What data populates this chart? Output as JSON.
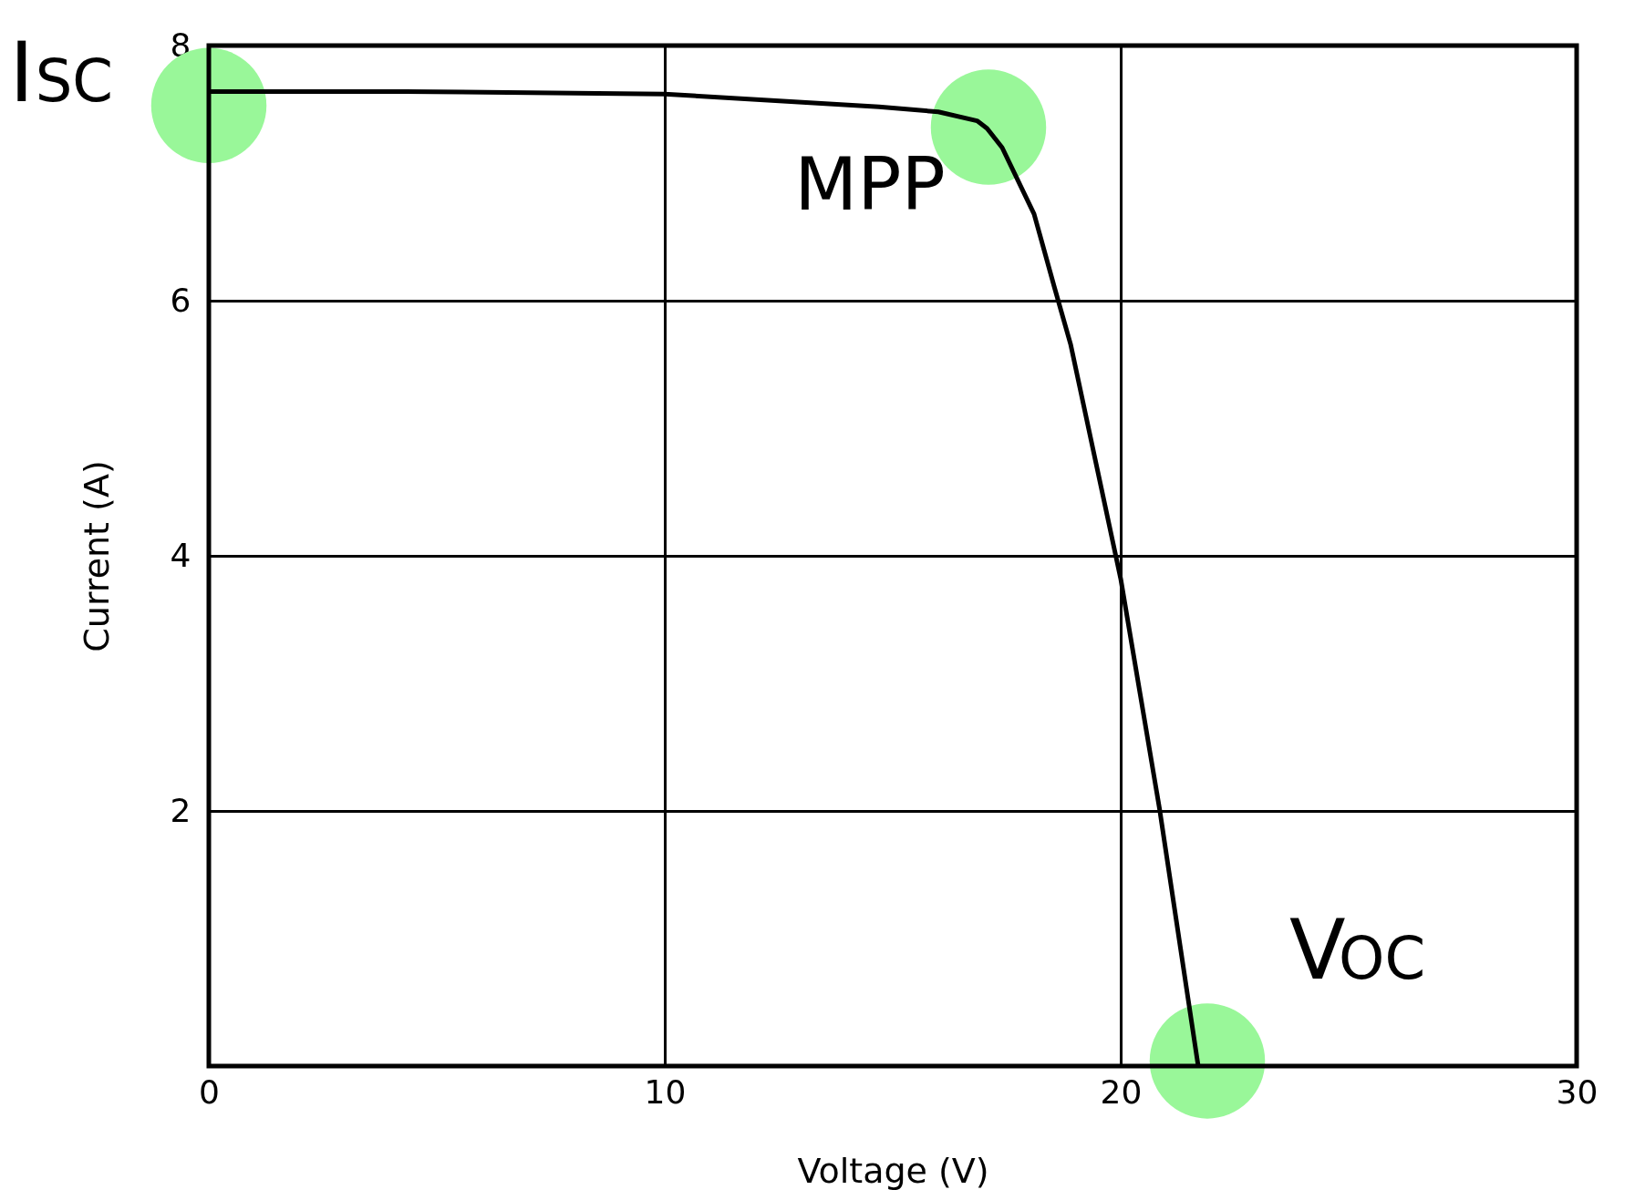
{
  "chart_data": {
    "type": "line",
    "xlabel": "Voltage (V)",
    "ylabel": "Current (A)",
    "xlim": [
      0,
      30
    ],
    "ylim": [
      0,
      8
    ],
    "xticks": [
      0,
      10,
      20,
      30
    ],
    "yticks": [
      2,
      4,
      6,
      8
    ],
    "grid": true,
    "marker": "none",
    "line_style": "solid",
    "series": [
      {
        "color": "#000000",
        "x": [
          0,
          4.3,
          10,
          14.7,
          16,
          16.85,
          17.07,
          17.4,
          18.1,
          18.55,
          18.9,
          20.0,
          20.85,
          21.7
        ],
        "values": [
          7.64,
          7.64,
          7.62,
          7.52,
          7.48,
          7.41,
          7.35,
          7.2,
          6.68,
          6.1,
          5.66,
          3.82,
          2.02,
          0
        ]
      },
      {
        "type": "scatter",
        "marker": "circle",
        "color": "#99f799",
        "x": [
          0,
          17.1,
          21.9
        ],
        "values": [
          7.53,
          7.36,
          0.04
        ]
      }
    ],
    "annotations": [
      {
        "text": "I$_{SC}$",
        "x": 0,
        "y": 7.53
      },
      {
        "text": "MPP",
        "x": 17.1,
        "y": 7.36
      },
      {
        "text": "V$_{OC}$",
        "x": 21.9,
        "y": 0.04
      }
    ]
  }
}
